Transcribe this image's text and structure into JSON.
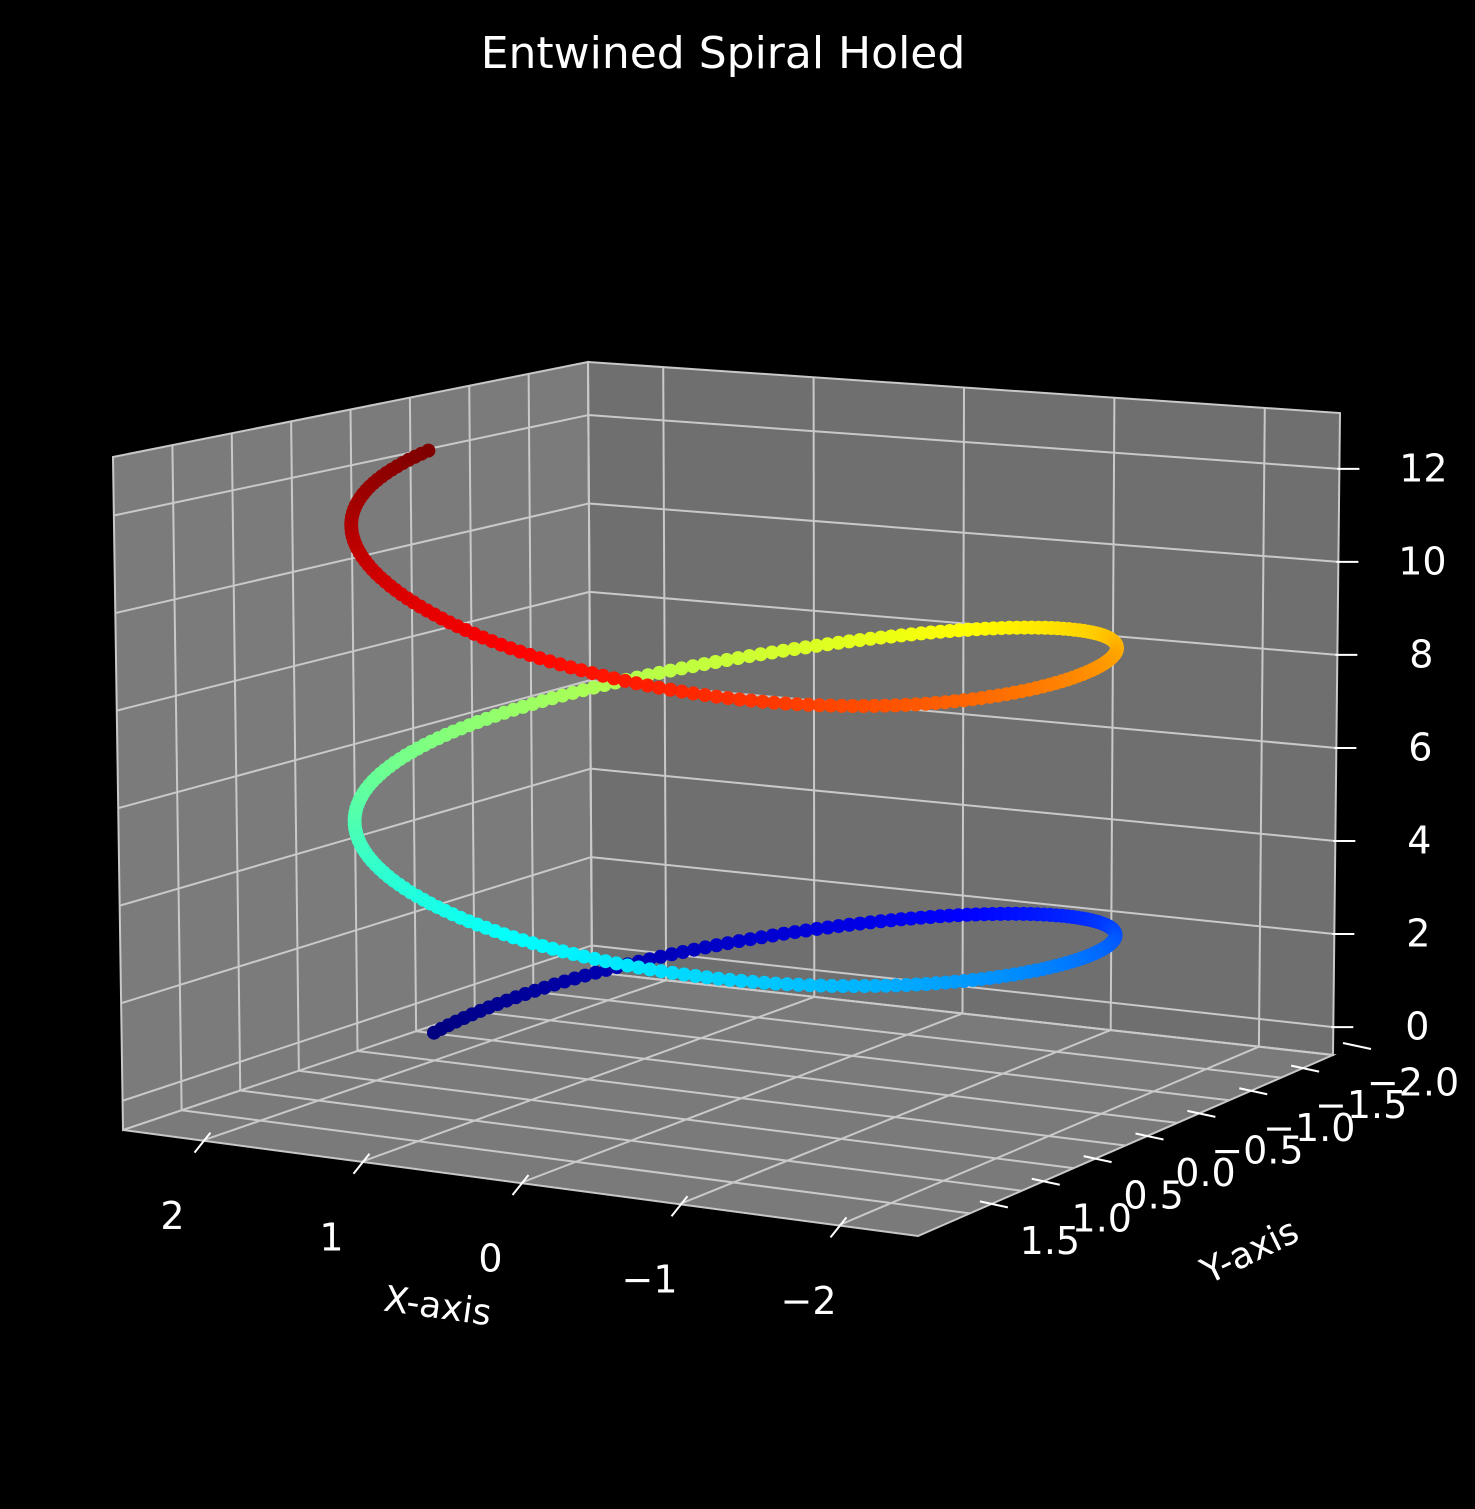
{
  "chart_data": {
    "type": "scatter3d",
    "title": "Entwined Spiral Holed",
    "xlabel": "X-axis",
    "ylabel": "Y-axis",
    "zlabel": "",
    "xlim": [
      -2.5,
      2.5
    ],
    "ylim": [
      -2.0,
      2.0
    ],
    "zlim": [
      -0.6,
      13.2
    ],
    "xticks": [
      2,
      1,
      0,
      -1,
      -2
    ],
    "xtick_labels": [
      "2",
      "1",
      "0",
      "−1",
      "−2"
    ],
    "yticks": [
      -2.0,
      -1.5,
      -1.0,
      -0.5,
      0.0,
      0.5,
      1.0,
      1.5
    ],
    "ytick_labels": [
      "−2.0",
      "−1.5",
      "−1.0",
      "−0.5",
      "0.0",
      "0.5",
      "1.0",
      "1.5"
    ],
    "zticks": [
      0,
      2,
      4,
      6,
      8,
      10,
      12
    ],
    "ztick_labels": [
      "0",
      "2",
      "4",
      "6",
      "8",
      "10",
      "12"
    ],
    "grid": true,
    "colormap": "jet",
    "background": "#000000",
    "pane_color": "#737373",
    "series": [
      {
        "kind": "helix",
        "t_range": [
          0,
          12.566
        ],
        "x": "2*cos(t)",
        "y": "-2*sin(t)",
        "z": "t",
        "color_by": "z"
      }
    ]
  }
}
